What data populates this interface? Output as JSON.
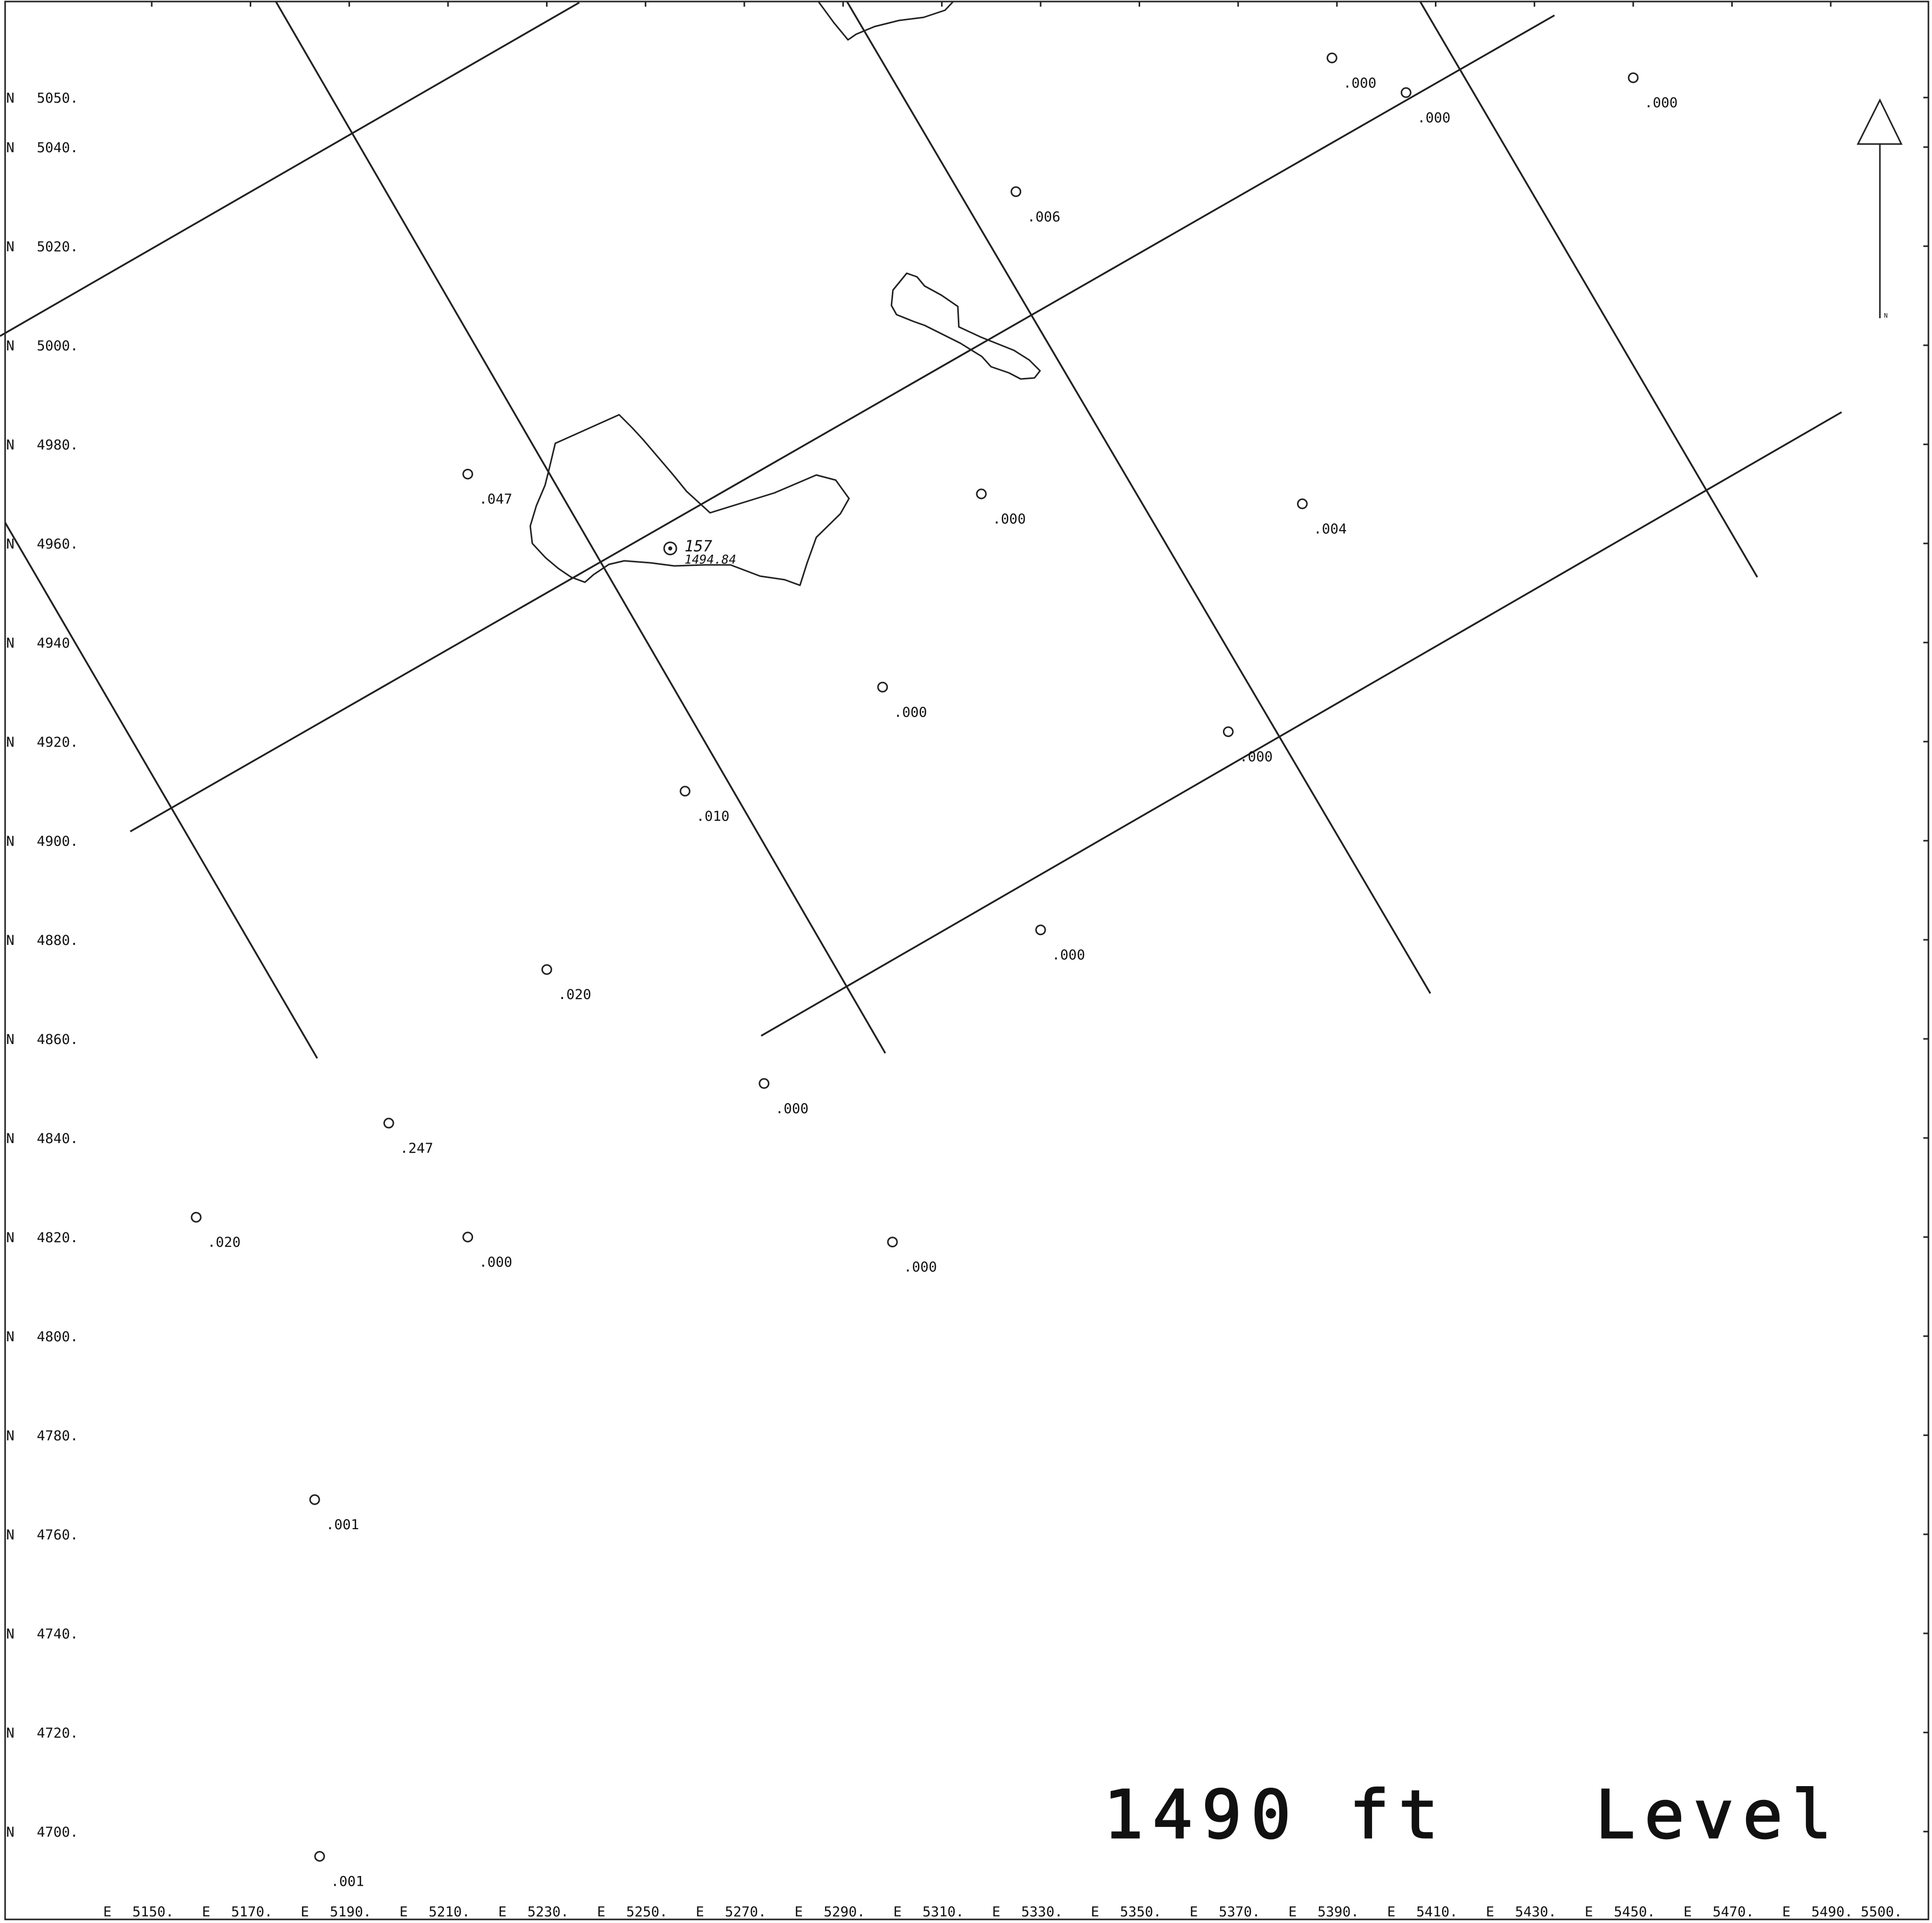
{
  "title": "1490 ft   Level",
  "north_arrow_label": "N",
  "northings": [
    {
      "prefix": "N",
      "value": "5050."
    },
    {
      "prefix": "N",
      "value": "5040."
    },
    {
      "prefix": "N",
      "value": "5020."
    },
    {
      "prefix": "N",
      "value": "5000."
    },
    {
      "prefix": "N",
      "value": "4980."
    },
    {
      "prefix": "N",
      "value": "4960."
    },
    {
      "prefix": "N",
      "value": "4940"
    },
    {
      "prefix": "N",
      "value": "4920."
    },
    {
      "prefix": "N",
      "value": "4900."
    },
    {
      "prefix": "N",
      "value": "4880."
    },
    {
      "prefix": "N",
      "value": "4860."
    },
    {
      "prefix": "N",
      "value": "4840."
    },
    {
      "prefix": "N",
      "value": "4820."
    },
    {
      "prefix": "N",
      "value": "4800."
    },
    {
      "prefix": "N",
      "value": "4780."
    },
    {
      "prefix": "N",
      "value": "4760."
    },
    {
      "prefix": "N",
      "value": "4740."
    },
    {
      "prefix": "N",
      "value": "4720."
    },
    {
      "prefix": "N",
      "value": "4700."
    }
  ],
  "eastings": [
    {
      "prefix": "E",
      "value": "5150."
    },
    {
      "prefix": "E",
      "value": "5170."
    },
    {
      "prefix": "E",
      "value": "5190."
    },
    {
      "prefix": "E",
      "value": "5210."
    },
    {
      "prefix": "E",
      "value": "5230."
    },
    {
      "prefix": "E",
      "value": "5250."
    },
    {
      "prefix": "E",
      "value": "5270."
    },
    {
      "prefix": "E",
      "value": "5290."
    },
    {
      "prefix": "E",
      "value": "5310."
    },
    {
      "prefix": "E",
      "value": "5330."
    },
    {
      "prefix": "E",
      "value": "5350."
    },
    {
      "prefix": "E",
      "value": "5370."
    },
    {
      "prefix": "E",
      "value": "5390."
    },
    {
      "prefix": "E",
      "value": "5410."
    },
    {
      "prefix": "E",
      "value": "5430."
    },
    {
      "prefix": "E",
      "value": "5450."
    },
    {
      "prefix": "E",
      "value": "5470."
    },
    {
      "prefix": "E",
      "value": "5490."
    },
    {
      "prefix": "",
      "value": "5500."
    }
  ],
  "samples": [
    {
      "e": 5389,
      "n": 5058,
      "value": ".000"
    },
    {
      "e": 5404,
      "n": 5051,
      "value": ".000"
    },
    {
      "e": 5450,
      "n": 5054,
      "value": ".000"
    },
    {
      "e": 5325,
      "n": 5031,
      "value": ".006"
    },
    {
      "e": 5214,
      "n": 4974,
      "value": ".047"
    },
    {
      "e": 5318,
      "n": 4970,
      "value": ".000"
    },
    {
      "e": 5383,
      "n": 4968,
      "value": ".004"
    },
    {
      "e": 5298,
      "n": 4931,
      "value": ".000"
    },
    {
      "e": 5368,
      "n": 4922,
      "value": ".000"
    },
    {
      "e": 5258,
      "n": 4910,
      "value": ".010"
    },
    {
      "e": 5230,
      "n": 4874,
      "value": ".020"
    },
    {
      "e": 5330,
      "n": 4882,
      "value": ".000"
    },
    {
      "e": 5274,
      "n": 4851,
      "value": ".000"
    },
    {
      "e": 5198,
      "n": 4843,
      "value": ".247"
    },
    {
      "e": 5159,
      "n": 4824,
      "value": ".020"
    },
    {
      "e": 5214,
      "n": 4820,
      "value": ".000"
    },
    {
      "e": 5300,
      "n": 4819,
      "value": ".000"
    },
    {
      "e": 5183,
      "n": 4767,
      "value": ".001"
    },
    {
      "e": 5184,
      "n": 4695,
      "value": ".001"
    }
  ],
  "drillhole": {
    "e": 5255,
    "n": 4959,
    "label_1": "157",
    "label_2": "1494.84"
  }
}
